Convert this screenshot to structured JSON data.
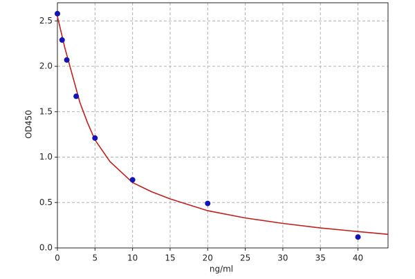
{
  "chart_data": {
    "type": "scatter",
    "x_label": "ng/ml",
    "y_label": "OD450",
    "points": {
      "color": "#1414b4",
      "x": [
        0,
        0.625,
        1.25,
        2.5,
        5,
        10,
        20,
        40
      ],
      "y": [
        2.58,
        2.29,
        2.07,
        1.67,
        1.21,
        0.75,
        0.49,
        0.12
      ]
    },
    "curve": {
      "color": "#c01e1e",
      "x": [
        0,
        1,
        2,
        3,
        4,
        5,
        7,
        10,
        12.5,
        15,
        20,
        25,
        30,
        35,
        40,
        44
      ],
      "y": [
        2.55,
        2.2,
        1.9,
        1.6,
        1.38,
        1.19,
        0.95,
        0.72,
        0.62,
        0.54,
        0.41,
        0.33,
        0.27,
        0.22,
        0.18,
        0.15
      ]
    },
    "xlim": [
      0,
      44
    ],
    "xticks": [
      0,
      5,
      10,
      15,
      20,
      25,
      30,
      35,
      40
    ],
    "ylim": [
      0,
      2.7
    ],
    "yticks": [
      {
        "value": 0,
        "label": "0.0"
      },
      0.5,
      {
        "value": 1,
        "label": "1.0"
      },
      1.5,
      {
        "value": 2,
        "label": "2.0"
      },
      2.5
    ],
    "grid": true
  }
}
